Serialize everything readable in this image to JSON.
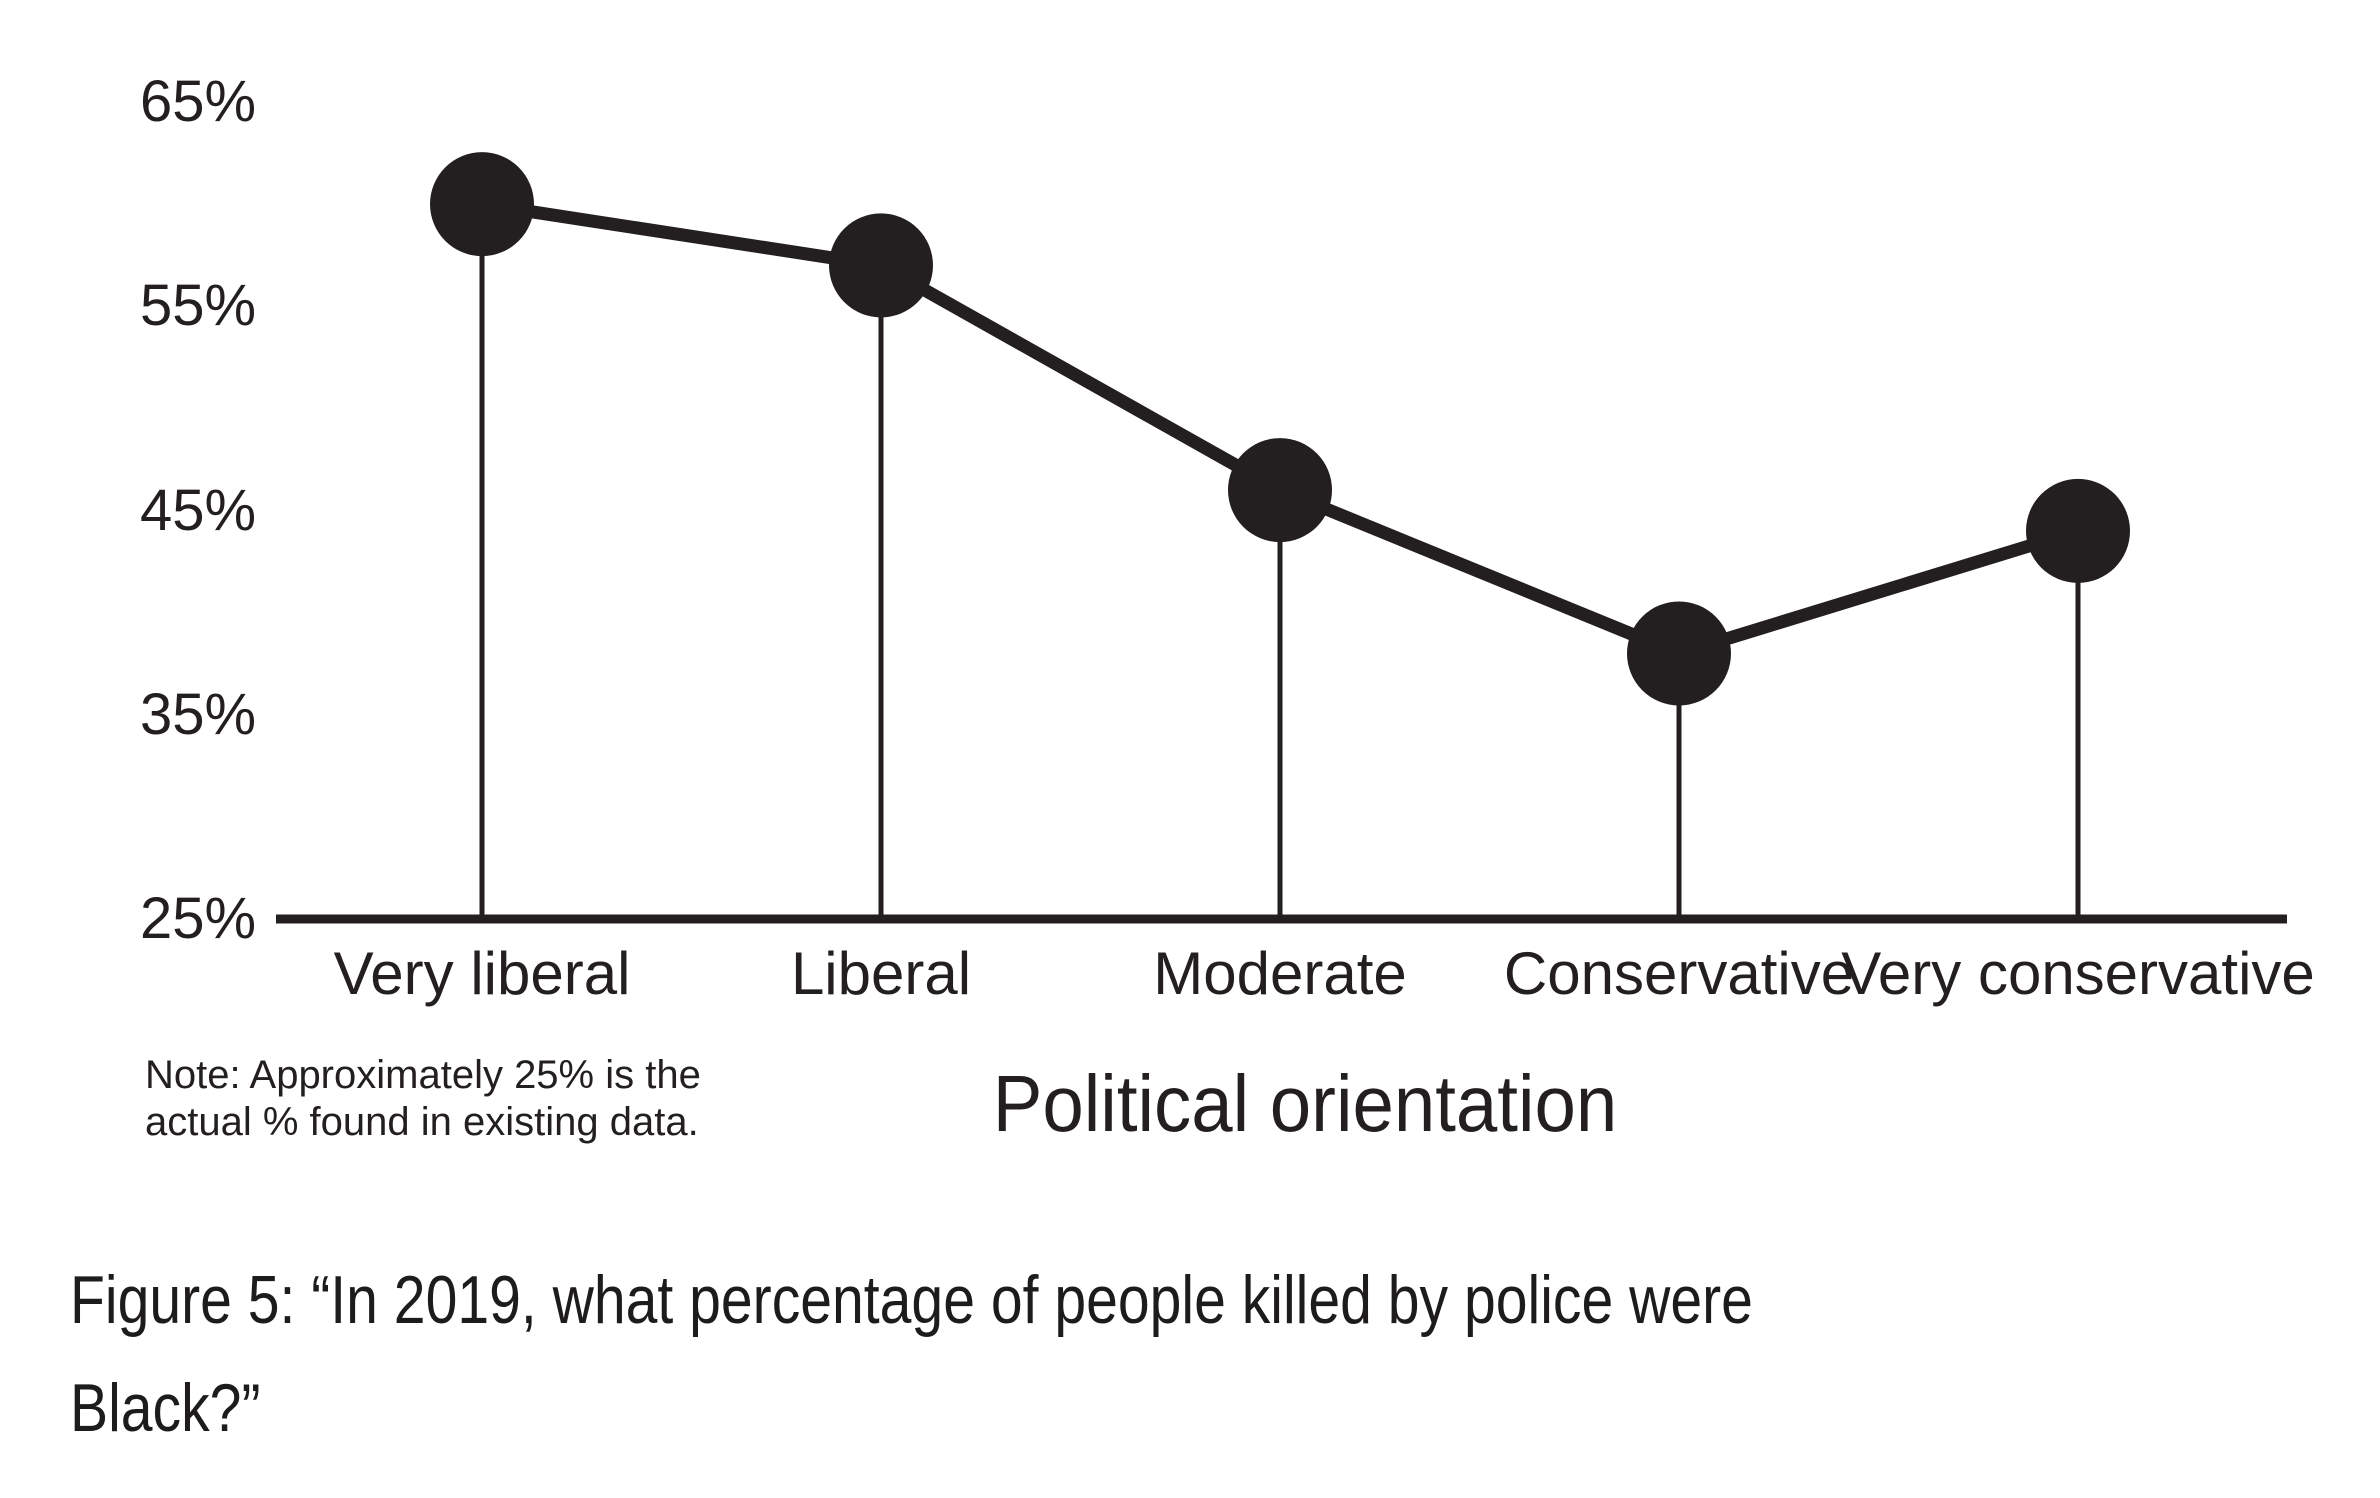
{
  "chart_data": {
    "type": "line",
    "title": "",
    "categories": [
      "Very liberal",
      "Liberal",
      "Moderate",
      "Conservative",
      "Very conservative"
    ],
    "values": [
      60,
      57,
      46,
      38,
      44
    ],
    "unit": "%",
    "xlabel": "Political orientation",
    "ylabel": "",
    "ylim": [
      25,
      65
    ],
    "ytick_values": [
      65,
      55,
      45,
      35,
      25
    ],
    "ytick_labels": [
      "65%",
      "55%",
      "45%",
      "35%",
      "25%"
    ],
    "grid": false,
    "legend": "none",
    "marker": "large-filled-circle",
    "stems_to_axis": true,
    "note_line1": "Note: Approximately 25% is the",
    "note_line2": "actual % found in existing data.",
    "ink_color": "#231f20",
    "background_color": "#ffffff"
  },
  "figure": {
    "caption_line1": "Figure 5: “In 2019, what percentage of people killed by police were",
    "caption_line2": "Black?”"
  }
}
